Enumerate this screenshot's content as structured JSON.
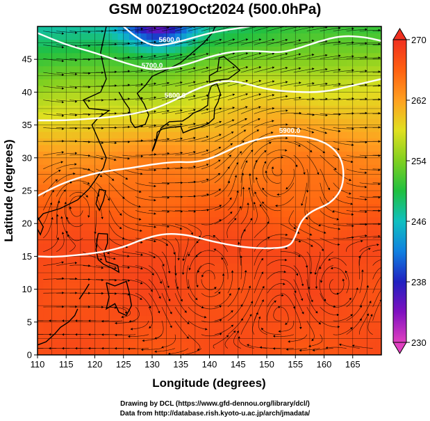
{
  "title": "GSM 00Z19Oct2024 (500.0hPa)",
  "chart_data": {
    "type": "heatmap",
    "title": "GSM 00Z19Oct2024 (500.0hPa)",
    "xlabel": "Longitude (degrees)",
    "ylabel": "Latitude  (degrees)",
    "xlim": [
      110,
      170
    ],
    "ylim": [
      0,
      50
    ],
    "x_ticks": [
      110,
      115,
      120,
      125,
      130,
      135,
      140,
      145,
      150,
      155,
      160,
      165
    ],
    "y_ticks": [
      0,
      5,
      10,
      15,
      20,
      25,
      30,
      35,
      40,
      45
    ],
    "grid": true,
    "colorbar": {
      "range": [
        230,
        270
      ],
      "ticks": [
        230,
        238,
        246,
        254,
        262,
        270
      ],
      "colors": [
        "#e040c0",
        "#8010c0",
        "#2020c0",
        "#1080e0",
        "#10c0c0",
        "#20c040",
        "#80d020",
        "#e0e020",
        "#ffa020",
        "#ff6010",
        "#f03020"
      ]
    },
    "contour_labels": [
      "5600.0",
      "5700.0",
      "5800.0",
      "5900.0"
    ],
    "contours": [
      {
        "label": "5600.0",
        "points": [
          [
            125,
            50
          ],
          [
            127,
            48.5
          ],
          [
            130,
            47
          ],
          [
            133,
            47.3
          ],
          [
            136,
            48
          ],
          [
            138,
            48.5
          ],
          [
            141,
            49.2
          ],
          [
            144,
            49.6
          ],
          [
            147,
            50
          ]
        ]
      },
      {
        "label": "5700.0",
        "points": [
          [
            110,
            49
          ],
          [
            115,
            47.2
          ],
          [
            120,
            46
          ],
          [
            124,
            44.8
          ],
          [
            127,
            44
          ],
          [
            130,
            43.4
          ],
          [
            133,
            43.6
          ],
          [
            136,
            44.2
          ],
          [
            140,
            45.4
          ],
          [
            144,
            46.2
          ],
          [
            148,
            46.3
          ],
          [
            152,
            46
          ],
          [
            155,
            46.5
          ],
          [
            159,
            47.7
          ],
          [
            163,
            48.6
          ],
          [
            167,
            48.4
          ],
          [
            170,
            47.8
          ]
        ]
      },
      {
        "label": "5800.0",
        "points": [
          [
            110,
            35.7
          ],
          [
            115,
            35.7
          ],
          [
            120,
            36
          ],
          [
            125,
            36.4
          ],
          [
            130,
            37.3
          ],
          [
            134,
            38.8
          ],
          [
            137,
            40.2
          ],
          [
            140,
            41.2
          ],
          [
            143,
            41.8
          ],
          [
            146,
            41.4
          ],
          [
            150,
            40.4
          ],
          [
            155,
            40
          ],
          [
            160,
            40
          ],
          [
            165,
            41
          ],
          [
            170,
            42
          ]
        ]
      },
      {
        "label": "5900.0",
        "points": [
          [
            110,
            24.2
          ],
          [
            114,
            26
          ],
          [
            118,
            27.2
          ],
          [
            122,
            28
          ],
          [
            126,
            28.4
          ],
          [
            130,
            29
          ],
          [
            134,
            29.4
          ],
          [
            137,
            29.3
          ],
          [
            140,
            29.8
          ],
          [
            143,
            31
          ],
          [
            146,
            32.2
          ],
          [
            150,
            33.2
          ],
          [
            154,
            33.5
          ],
          [
            158,
            33
          ],
          [
            161,
            32
          ],
          [
            163,
            30
          ],
          [
            163.5,
            27.5
          ],
          [
            163,
            25
          ],
          [
            161,
            23
          ],
          [
            158,
            22
          ],
          [
            156,
            20.5
          ],
          [
            155,
            18
          ],
          [
            154,
            16.5
          ],
          [
            151,
            16.2
          ],
          [
            147,
            16.3
          ],
          [
            143,
            16.8
          ],
          [
            139,
            17.6
          ],
          [
            136,
            18.3
          ],
          [
            132,
            18.5
          ],
          [
            128,
            17.5
          ],
          [
            125,
            16.4
          ],
          [
            121,
            15.6
          ],
          [
            117,
            15.2
          ],
          [
            113,
            14.9
          ],
          [
            110,
            15
          ]
        ]
      }
    ],
    "vortices": [
      [
        152,
        30
      ],
      [
        117,
        24.5
      ],
      [
        140,
        11
      ],
      [
        162,
        10
      ]
    ],
    "coastline_regions": [
      "East Asian mainland coast",
      "Korean Peninsula",
      "Japan",
      "Taiwan",
      "Philippines",
      "Borneo coast"
    ]
  },
  "axes": {
    "xlabel": "Longitude (degrees)",
    "ylabel": "Latitude  (degrees)"
  },
  "credits": {
    "line1": "Drawing by DCL (https://www.gfd-dennou.org/library/dcl/)",
    "line2": "Data from http://database.rish.kyoto-u.ac.jp/arch/jmadata/"
  }
}
